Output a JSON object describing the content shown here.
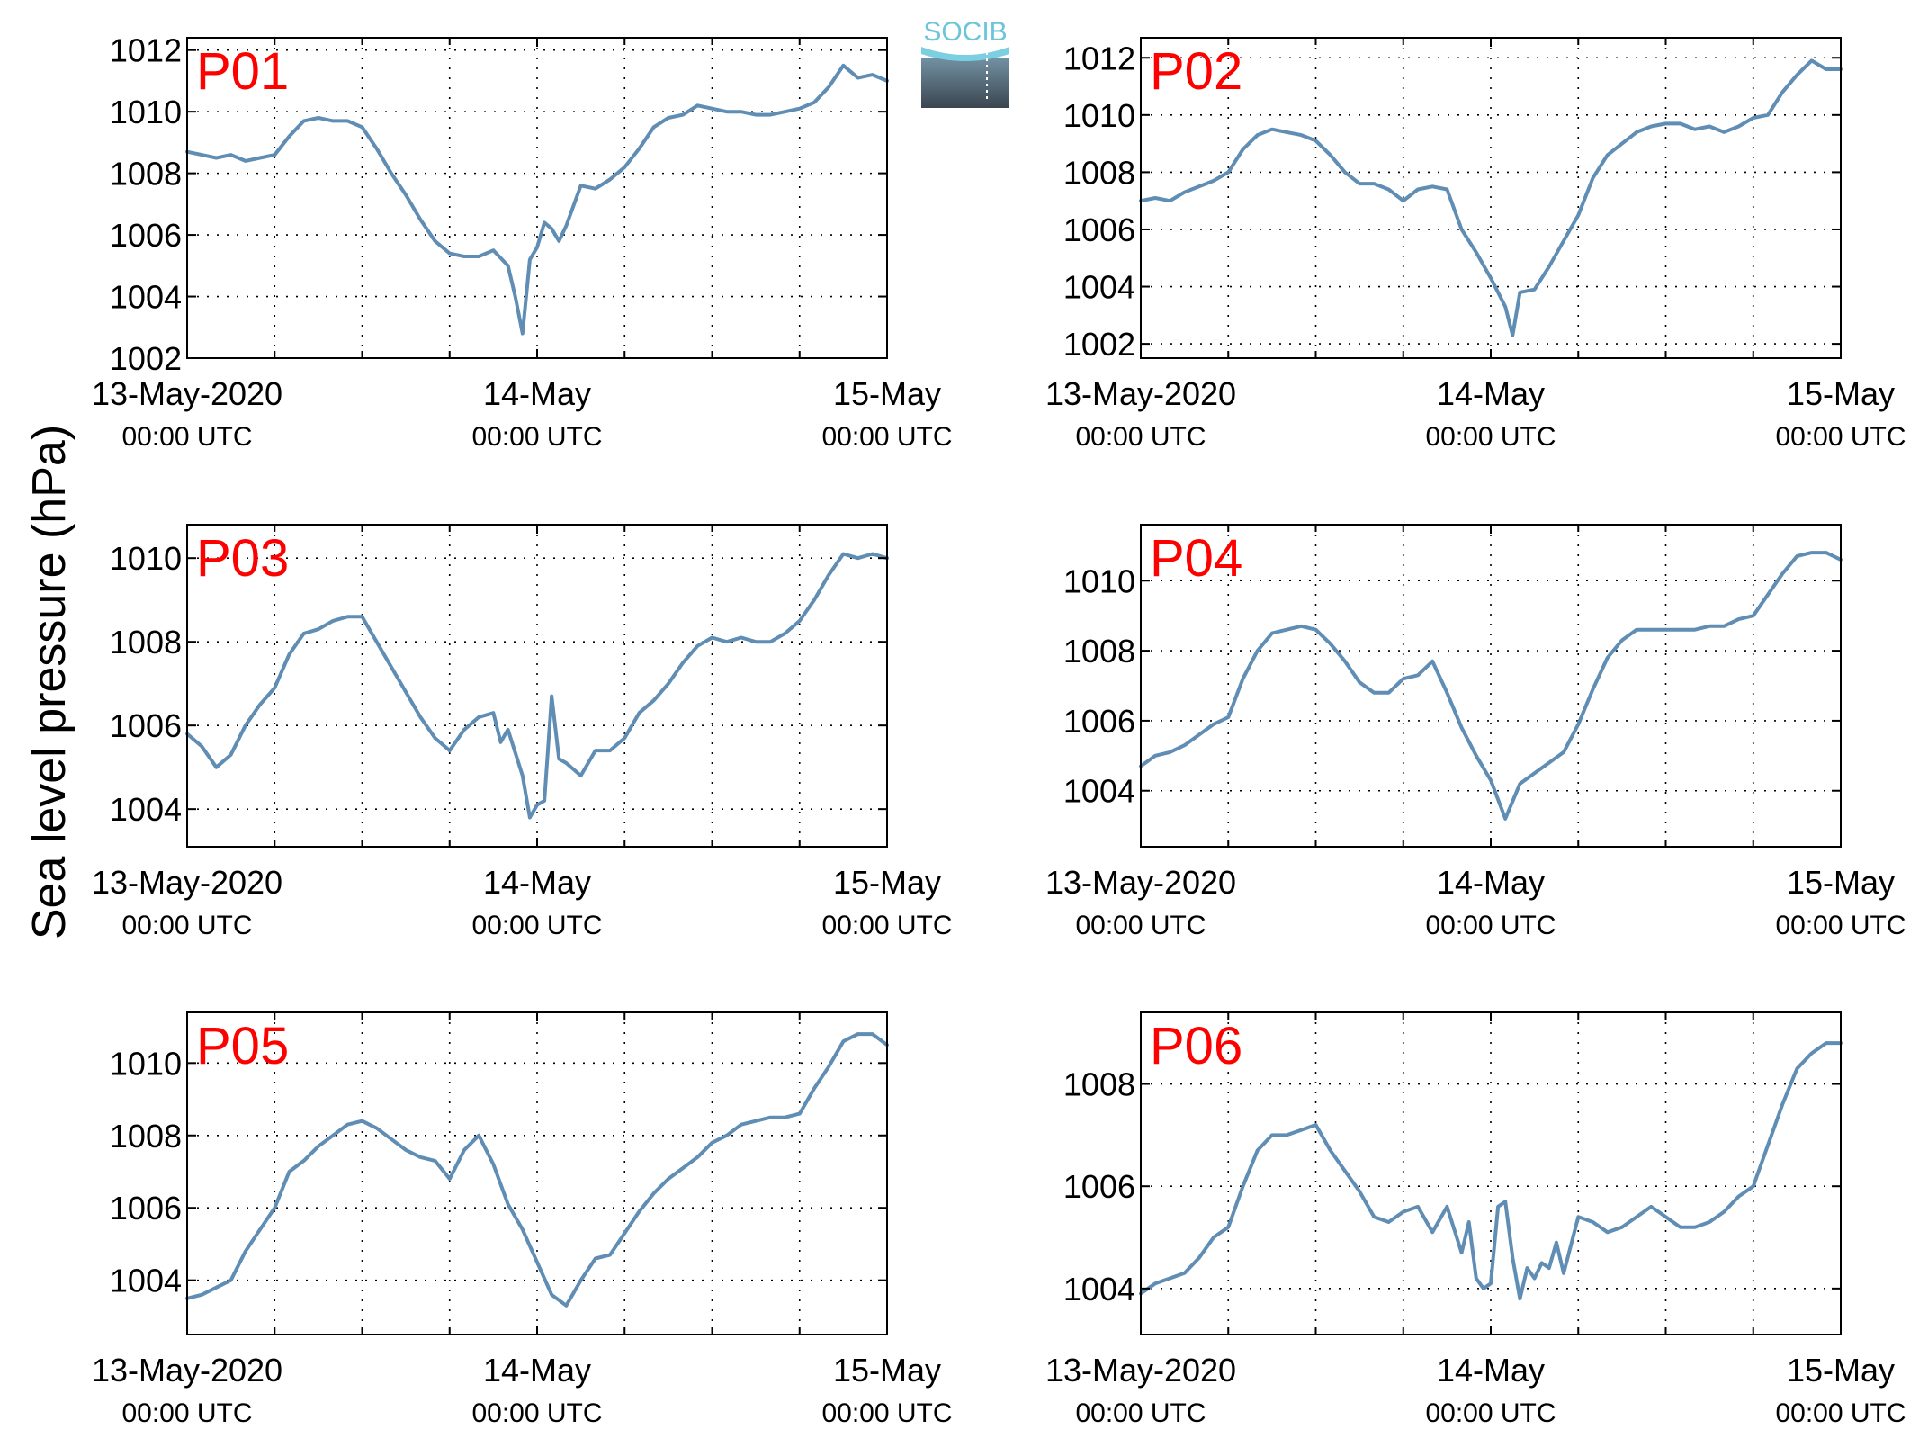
{
  "figure": {
    "ylabel": "Sea level pressure (hPa)",
    "logo_text": "SOCIB",
    "line_color": "#5f8db3",
    "label_color": "#ff0000",
    "grid": true,
    "xticks": [
      {
        "t": 0,
        "line1": "13-May-2020",
        "line2": "00:00 UTC"
      },
      {
        "t": 24,
        "line1": "14-May",
        "line2": "00:00 UTC"
      },
      {
        "t": 48,
        "line1": "15-May",
        "line2": "00:00 UTC"
      }
    ],
    "xgrid_hours": [
      6,
      12,
      18,
      24,
      30,
      36,
      42
    ]
  },
  "chart_data": [
    {
      "type": "line",
      "panel_label": "P01",
      "x_unit": "hours since 13-May-2020 00:00 UTC",
      "xlim": [
        0,
        48
      ],
      "ylim": [
        1002,
        1012.4
      ],
      "yticks": [
        1002,
        1004,
        1006,
        1008,
        1010,
        1012
      ],
      "x": [
        0,
        1,
        2,
        3,
        4,
        5,
        6,
        7,
        8,
        9,
        10,
        11,
        12,
        13,
        14,
        15,
        16,
        17,
        18,
        19,
        20,
        21,
        22,
        22.5,
        23,
        23.5,
        24,
        24.5,
        25,
        25.5,
        26,
        27,
        28,
        29,
        30,
        31,
        32,
        33,
        34,
        35,
        36,
        37,
        38,
        39,
        40,
        41,
        42,
        43,
        44,
        45,
        46,
        47,
        48
      ],
      "y": [
        1008.7,
        1008.6,
        1008.5,
        1008.6,
        1008.4,
        1008.5,
        1008.6,
        1009.2,
        1009.7,
        1009.8,
        1009.7,
        1009.7,
        1009.5,
        1008.8,
        1008.0,
        1007.3,
        1006.5,
        1005.8,
        1005.4,
        1005.3,
        1005.3,
        1005.5,
        1005.0,
        1004.0,
        1002.8,
        1005.2,
        1005.6,
        1006.4,
        1006.2,
        1005.8,
        1006.3,
        1007.6,
        1007.5,
        1007.8,
        1008.2,
        1008.8,
        1009.5,
        1009.8,
        1009.9,
        1010.2,
        1010.1,
        1010.0,
        1010.0,
        1009.9,
        1009.9,
        1010.0,
        1010.1,
        1010.3,
        1010.8,
        1011.5,
        1011.1,
        1011.2,
        1011.0
      ]
    },
    {
      "type": "line",
      "panel_label": "P02",
      "x_unit": "hours since 13-May-2020 00:00 UTC",
      "xlim": [
        0,
        48
      ],
      "ylim": [
        1001.5,
        1012.7
      ],
      "yticks": [
        1002,
        1004,
        1006,
        1008,
        1010,
        1012
      ],
      "x": [
        0,
        1,
        2,
        3,
        4,
        5,
        6,
        7,
        8,
        9,
        10,
        11,
        12,
        13,
        14,
        15,
        16,
        17,
        18,
        19,
        20,
        21,
        22,
        23,
        24,
        25,
        25.5,
        26,
        27,
        28,
        29,
        30,
        31,
        32,
        33,
        34,
        35,
        36,
        37,
        38,
        39,
        40,
        41,
        42,
        43,
        44,
        45,
        46,
        47,
        48
      ],
      "y": [
        1007.0,
        1007.1,
        1007.0,
        1007.3,
        1007.5,
        1007.7,
        1008.0,
        1008.8,
        1009.3,
        1009.5,
        1009.4,
        1009.3,
        1009.1,
        1008.6,
        1008.0,
        1007.6,
        1007.6,
        1007.4,
        1007.0,
        1007.4,
        1007.5,
        1007.4,
        1006.0,
        1005.2,
        1004.3,
        1003.3,
        1002.3,
        1003.8,
        1003.9,
        1004.7,
        1005.6,
        1006.5,
        1007.8,
        1008.6,
        1009.0,
        1009.4,
        1009.6,
        1009.7,
        1009.7,
        1009.5,
        1009.6,
        1009.4,
        1009.6,
        1009.9,
        1010.0,
        1010.8,
        1011.4,
        1011.9,
        1011.6,
        1011.6
      ]
    },
    {
      "type": "line",
      "panel_label": "P03",
      "x_unit": "hours since 13-May-2020 00:00 UTC",
      "xlim": [
        0,
        48
      ],
      "ylim": [
        1003.1,
        1010.8
      ],
      "yticks": [
        1004,
        1006,
        1008,
        1010
      ],
      "x": [
        0,
        1,
        2,
        3,
        4,
        5,
        6,
        7,
        8,
        9,
        10,
        11,
        12,
        13,
        14,
        15,
        16,
        17,
        18,
        19,
        20,
        21,
        21.5,
        22,
        23,
        23.5,
        24,
        24.5,
        25,
        25.5,
        26,
        27,
        28,
        29,
        30,
        31,
        32,
        33,
        34,
        35,
        36,
        37,
        38,
        39,
        40,
        41,
        42,
        43,
        44,
        45,
        46,
        47,
        48
      ],
      "y": [
        1005.8,
        1005.5,
        1005.0,
        1005.3,
        1006.0,
        1006.5,
        1006.9,
        1007.7,
        1008.2,
        1008.3,
        1008.5,
        1008.6,
        1008.6,
        1008.0,
        1007.4,
        1006.8,
        1006.2,
        1005.7,
        1005.4,
        1005.9,
        1006.2,
        1006.3,
        1005.6,
        1005.9,
        1004.8,
        1003.8,
        1004.1,
        1004.2,
        1006.7,
        1005.2,
        1005.1,
        1004.8,
        1005.4,
        1005.4,
        1005.7,
        1006.3,
        1006.6,
        1007.0,
        1007.5,
        1007.9,
        1008.1,
        1008.0,
        1008.1,
        1008.0,
        1008.0,
        1008.2,
        1008.5,
        1009.0,
        1009.6,
        1010.1,
        1010.0,
        1010.1,
        1010.0
      ]
    },
    {
      "type": "line",
      "panel_label": "P04",
      "x_unit": "hours since 13-May-2020 00:00 UTC",
      "xlim": [
        0,
        48
      ],
      "ylim": [
        1002.4,
        1011.6
      ],
      "yticks": [
        1004,
        1006,
        1008,
        1010
      ],
      "x": [
        0,
        1,
        2,
        3,
        4,
        5,
        6,
        7,
        8,
        9,
        10,
        11,
        12,
        13,
        14,
        15,
        16,
        17,
        18,
        19,
        20,
        21,
        22,
        23,
        24,
        25,
        26,
        27,
        28,
        29,
        30,
        31,
        32,
        33,
        34,
        35,
        36,
        37,
        38,
        39,
        40,
        41,
        42,
        43,
        44,
        45,
        46,
        47,
        48
      ],
      "y": [
        1004.7,
        1005.0,
        1005.1,
        1005.3,
        1005.6,
        1005.9,
        1006.1,
        1007.2,
        1008.0,
        1008.5,
        1008.6,
        1008.7,
        1008.6,
        1008.2,
        1007.7,
        1007.1,
        1006.8,
        1006.8,
        1007.2,
        1007.3,
        1007.7,
        1006.8,
        1005.8,
        1005.0,
        1004.3,
        1003.2,
        1004.2,
        1004.5,
        1004.8,
        1005.1,
        1005.9,
        1006.9,
        1007.8,
        1008.3,
        1008.6,
        1008.6,
        1008.6,
        1008.6,
        1008.6,
        1008.7,
        1008.7,
        1008.9,
        1009.0,
        1009.6,
        1010.2,
        1010.7,
        1010.8,
        1010.8,
        1010.6
      ]
    },
    {
      "type": "line",
      "panel_label": "P05",
      "x_unit": "hours since 13-May-2020 00:00 UTC",
      "xlim": [
        0,
        48
      ],
      "ylim": [
        1002.5,
        1011.4
      ],
      "yticks": [
        1004,
        1006,
        1008,
        1010
      ],
      "x": [
        0,
        1,
        2,
        3,
        4,
        5,
        6,
        7,
        8,
        9,
        10,
        11,
        12,
        13,
        14,
        15,
        16,
        17,
        18,
        19,
        20,
        21,
        22,
        23,
        24,
        25,
        26,
        27,
        28,
        29,
        30,
        31,
        32,
        33,
        34,
        35,
        36,
        37,
        38,
        39,
        40,
        41,
        42,
        43,
        44,
        45,
        46,
        47,
        48
      ],
      "y": [
        1003.5,
        1003.6,
        1003.8,
        1004.0,
        1004.8,
        1005.4,
        1006.0,
        1007.0,
        1007.3,
        1007.7,
        1008.0,
        1008.3,
        1008.4,
        1008.2,
        1007.9,
        1007.6,
        1007.4,
        1007.3,
        1006.8,
        1007.6,
        1008.0,
        1007.2,
        1006.1,
        1005.4,
        1004.5,
        1003.6,
        1003.3,
        1004.0,
        1004.6,
        1004.7,
        1005.3,
        1005.9,
        1006.4,
        1006.8,
        1007.1,
        1007.4,
        1007.8,
        1008.0,
        1008.3,
        1008.4,
        1008.5,
        1008.5,
        1008.6,
        1009.3,
        1009.9,
        1010.6,
        1010.8,
        1010.8,
        1010.5
      ]
    },
    {
      "type": "line",
      "panel_label": "P06",
      "x_unit": "hours since 13-May-2020 00:00 UTC",
      "xlim": [
        0,
        48
      ],
      "ylim": [
        1003.1,
        1009.4
      ],
      "yticks": [
        1004,
        1006,
        1008
      ],
      "x": [
        0,
        1,
        2,
        3,
        4,
        5,
        6,
        7,
        8,
        9,
        10,
        11,
        12,
        13,
        14,
        15,
        16,
        17,
        18,
        19,
        20,
        21,
        22,
        22.5,
        23,
        23.5,
        24,
        24.5,
        25,
        25.5,
        26,
        26.5,
        27,
        27.5,
        28,
        28.5,
        29,
        30,
        31,
        32,
        33,
        34,
        35,
        36,
        37,
        38,
        39,
        40,
        41,
        42,
        43,
        44,
        45,
        46,
        47,
        48
      ],
      "y": [
        1003.9,
        1004.1,
        1004.2,
        1004.3,
        1004.6,
        1005.0,
        1005.2,
        1006.0,
        1006.7,
        1007.0,
        1007.0,
        1007.1,
        1007.2,
        1006.7,
        1006.3,
        1005.9,
        1005.4,
        1005.3,
        1005.5,
        1005.6,
        1005.1,
        1005.6,
        1004.7,
        1005.3,
        1004.2,
        1004.0,
        1004.1,
        1005.6,
        1005.7,
        1004.6,
        1003.8,
        1004.4,
        1004.2,
        1004.5,
        1004.4,
        1004.9,
        1004.3,
        1005.4,
        1005.3,
        1005.1,
        1005.2,
        1005.4,
        1005.6,
        1005.4,
        1005.2,
        1005.2,
        1005.3,
        1005.5,
        1005.8,
        1006.0,
        1006.8,
        1007.6,
        1008.3,
        1008.6,
        1008.8,
        1008.8
      ]
    }
  ]
}
